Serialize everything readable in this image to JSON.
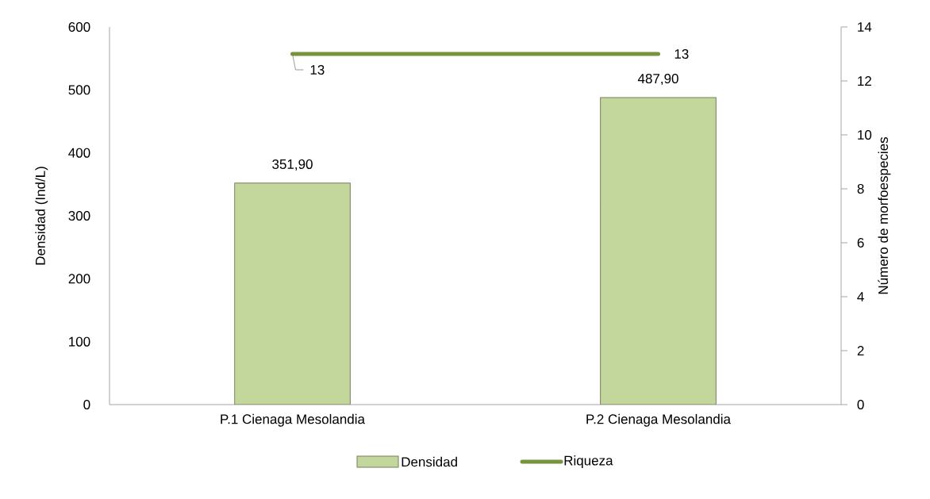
{
  "chart_data": {
    "type": "bar",
    "categories": [
      "P.1 Cienaga Mesolandia",
      "P.2 Cienaga Mesolandia"
    ],
    "ylabel": "Densidad (Ind/L)",
    "y2label": "Número de morfoespecies",
    "ylim": [
      0,
      600
    ],
    "yticks": [
      0,
      100,
      200,
      300,
      400,
      500,
      600
    ],
    "y2lim": [
      0,
      14
    ],
    "y2ticks": [
      0,
      2,
      4,
      6,
      8,
      10,
      12,
      14
    ],
    "legend": "bottom",
    "series": [
      {
        "name": "Densidad",
        "type": "bar",
        "color": "#c3d69b",
        "values": [
          351.9,
          487.9
        ],
        "value_labels": [
          "351,90",
          "487,90"
        ]
      },
      {
        "name": "Riqueza",
        "type": "line",
        "axis": "y2",
        "color": "#77933c",
        "values": [
          13,
          13
        ],
        "value_labels": [
          "13",
          "13"
        ]
      }
    ]
  }
}
